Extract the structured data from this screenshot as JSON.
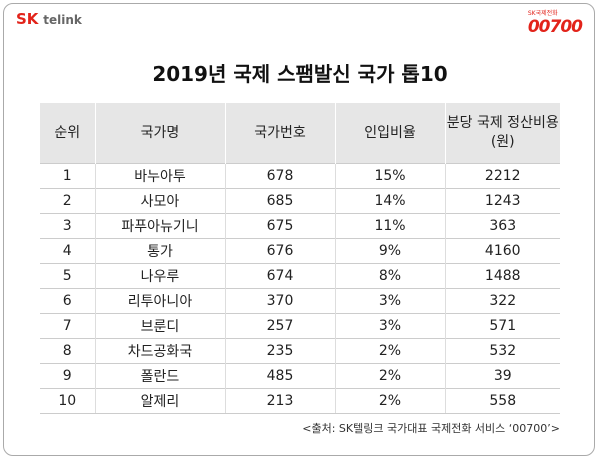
{
  "logo_left": {
    "brand": "SK",
    "name": "telink"
  },
  "logo_right": {
    "small": "SK국제전화",
    "number": "00700"
  },
  "title": "2019년 국제 스팸발신 국가 톱10",
  "table": {
    "headers": [
      "순위",
      "국가명",
      "국가번호",
      "인입비율",
      "분당 국제 정산비용(원)"
    ],
    "rows": [
      [
        "1",
        "바누아투",
        "678",
        "15%",
        "2212"
      ],
      [
        "2",
        "사모아",
        "685",
        "14%",
        "1243"
      ],
      [
        "3",
        "파푸아뉴기니",
        "675",
        "11%",
        "363"
      ],
      [
        "4",
        "통가",
        "676",
        "9%",
        "4160"
      ],
      [
        "5",
        "나우루",
        "674",
        "8%",
        "1488"
      ],
      [
        "6",
        "리투아니아",
        "370",
        "3%",
        "322"
      ],
      [
        "7",
        "브룬디",
        "257",
        "3%",
        "571"
      ],
      [
        "8",
        "차드공화국",
        "235",
        "2%",
        "532"
      ],
      [
        "9",
        "폴란드",
        "485",
        "2%",
        "39"
      ],
      [
        "10",
        "알제리",
        "213",
        "2%",
        "558"
      ]
    ]
  },
  "source": "<출처: SK텔링크 국가대표 국제전화 서비스 ‘00700’>"
}
